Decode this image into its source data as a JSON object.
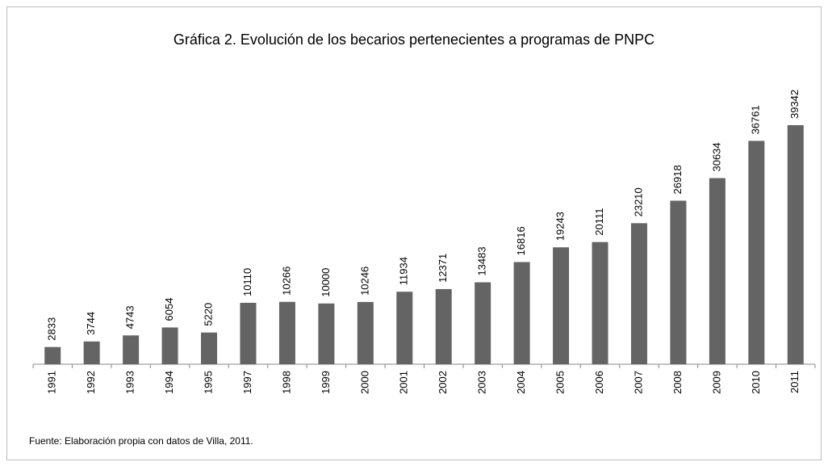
{
  "chart_data": {
    "type": "bar",
    "title": "Gráfica 2. Evolución de los becarios pertenecientes a programas de PNPC",
    "note": "Fuente: Elaboración propia con datos de Villa, 2011.",
    "categories": [
      "1991",
      "1992",
      "1993",
      "1994",
      "1995",
      "1997",
      "1998",
      "1999",
      "2000",
      "2001",
      "2002",
      "2003",
      "2004",
      "2005",
      "2006",
      "2007",
      "2008",
      "2009",
      "2010",
      "2011"
    ],
    "values": [
      2833,
      3744,
      4743,
      6054,
      5220,
      10110,
      10266,
      10000,
      10246,
      11934,
      12371,
      13483,
      16816,
      19243,
      20111,
      23210,
      26918,
      30634,
      36761,
      39342
    ],
    "color": "#646464"
  }
}
